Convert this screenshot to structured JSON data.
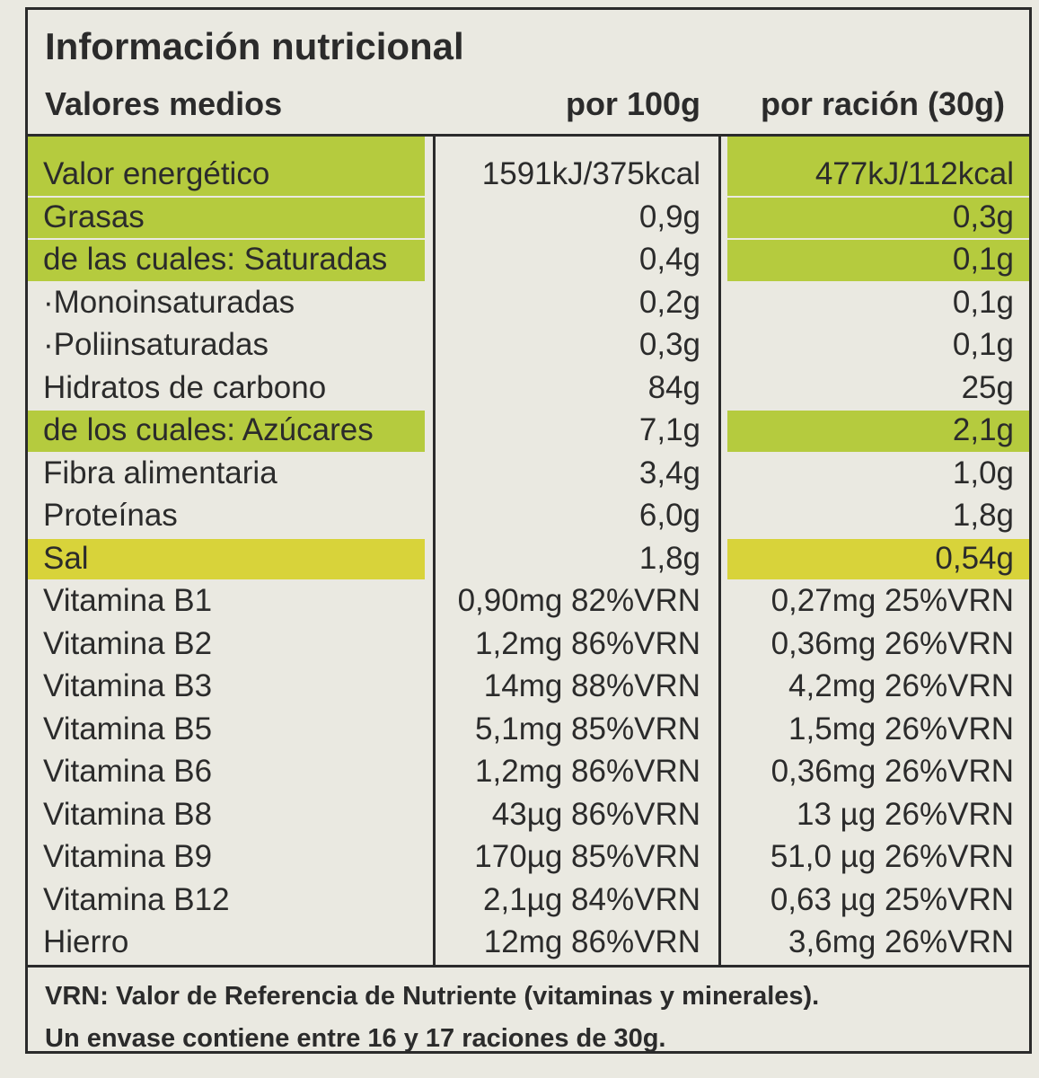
{
  "header": {
    "title": "Información nutricional",
    "columns": [
      "Valores medios",
      "por 100g",
      "por ración (30g)"
    ]
  },
  "table": {
    "rows": [
      {
        "cells": [
          "Valor energético",
          "1591kJ/375kcal",
          "477kJ/112kcal"
        ],
        "highlight": "#b5cb3e"
      },
      {
        "cells": [
          "Grasas",
          "0,9g",
          "0,3g"
        ],
        "highlight": "#b5cb3e"
      },
      {
        "cells": [
          "de las cuales: Saturadas",
          "0,4g",
          "0,1g"
        ],
        "highlight": "#b5cb3e"
      },
      {
        "cells": [
          "·Monoinsaturadas",
          "0,2g",
          "0,1g"
        ]
      },
      {
        "cells": [
          "·Poliinsaturadas",
          "0,3g",
          "0,1g"
        ]
      },
      {
        "cells": [
          "Hidratos de carbono",
          "84g",
          "25g"
        ]
      },
      {
        "cells": [
          "de los cuales: Azúcares",
          "7,1g",
          "2,1g"
        ],
        "highlight": "#b5cb3e"
      },
      {
        "cells": [
          "Fibra alimentaria",
          "3,4g",
          "1,0g"
        ]
      },
      {
        "cells": [
          "Proteínas",
          "6,0g",
          "1,8g"
        ]
      },
      {
        "cells": [
          "Sal",
          "1,8g",
          "0,54g"
        ],
        "highlight": "#d8d33a"
      },
      {
        "cells": [
          "Vitamina B1",
          "0,90mg 82%VRN",
          "0,27mg 25%VRN"
        ]
      },
      {
        "cells": [
          "Vitamina B2",
          "1,2mg 86%VRN",
          "0,36mg 26%VRN"
        ]
      },
      {
        "cells": [
          "Vitamina B3",
          "14mg 88%VRN",
          "4,2mg 26%VRN"
        ]
      },
      {
        "cells": [
          "Vitamina B5",
          "5,1mg 85%VRN",
          "1,5mg 26%VRN"
        ]
      },
      {
        "cells": [
          "Vitamina B6",
          "1,2mg 86%VRN",
          "0,36mg 26%VRN"
        ]
      },
      {
        "cells": [
          "Vitamina B8",
          "43µg 86%VRN",
          "13 µg 26%VRN"
        ]
      },
      {
        "cells": [
          "Vitamina B9",
          "170µg 85%VRN",
          "51,0 µg 26%VRN"
        ]
      },
      {
        "cells": [
          "Vitamina B12",
          "2,1µg 84%VRN",
          "0,63 µg 25%VRN"
        ]
      },
      {
        "cells": [
          "Hierro",
          "12mg 86%VRN",
          "3,6mg 26%VRN"
        ]
      }
    ]
  },
  "footer": {
    "lines": [
      "VRN: Valor de Referencia de Nutriente (vitaminas y minerales).",
      "Un envase contiene entre 16 y 17 raciones de 30g."
    ]
  }
}
